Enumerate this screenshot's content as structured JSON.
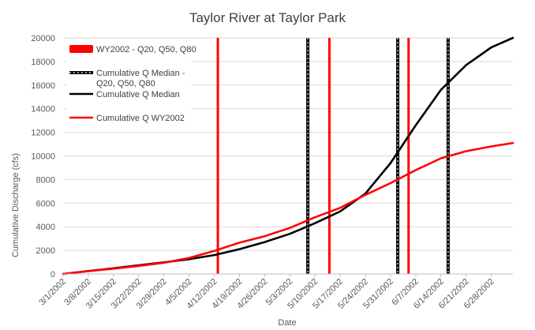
{
  "chart_data": {
    "type": "line",
    "title": "Taylor River at Taylor Park",
    "xlabel": "Date",
    "ylabel": "Cumulative Discharge (cfs)",
    "ylim": [
      0,
      20000
    ],
    "yticks": [
      0,
      2000,
      4000,
      6000,
      8000,
      10000,
      12000,
      14000,
      16000,
      18000,
      20000
    ],
    "xlim": [
      "2002-03-01",
      "2002-07-04"
    ],
    "xtick_labels": [
      "3/1/2002",
      "3/8/2002",
      "3/15/2002",
      "3/22/2002",
      "3/29/2002",
      "4/5/2002",
      "4/12/2002",
      "4/19/2002",
      "4/26/2002",
      "5/3/2002",
      "5/10/2002",
      "5/17/2002",
      "5/24/2002",
      "5/31/2002",
      "6/7/2002",
      "6/14/2002",
      "6/21/2002",
      "6/28/2002"
    ],
    "xtick_dates": [
      "2002-03-01",
      "2002-03-08",
      "2002-03-15",
      "2002-03-22",
      "2002-03-29",
      "2002-04-05",
      "2002-04-12",
      "2002-04-19",
      "2002-04-26",
      "2002-05-03",
      "2002-05-10",
      "2002-05-17",
      "2002-05-24",
      "2002-05-31",
      "2002-06-07",
      "2002-06-14",
      "2002-06-21",
      "2002-06-28"
    ],
    "grid": "horizontal",
    "legend_position": "top-left",
    "series": [
      {
        "name": "Cumulative Q Median",
        "color": "#000000",
        "x": [
          "2002-03-01",
          "2002-03-08",
          "2002-03-15",
          "2002-03-22",
          "2002-03-29",
          "2002-04-05",
          "2002-04-12",
          "2002-04-19",
          "2002-04-26",
          "2002-05-03",
          "2002-05-10",
          "2002-05-17",
          "2002-05-24",
          "2002-05-31",
          "2002-06-07",
          "2002-06-14",
          "2002-06-21",
          "2002-06-28",
          "2002-07-04"
        ],
        "y": [
          0,
          250,
          480,
          730,
          980,
          1250,
          1600,
          2100,
          2700,
          3400,
          4300,
          5300,
          6800,
          9400,
          12600,
          15600,
          17700,
          19200,
          20000
        ]
      },
      {
        "name": "Cumulative Q WY2002",
        "color": "#ff0000",
        "x": [
          "2002-03-01",
          "2002-03-08",
          "2002-03-15",
          "2002-03-22",
          "2002-03-29",
          "2002-04-05",
          "2002-04-12",
          "2002-04-19",
          "2002-04-26",
          "2002-05-03",
          "2002-05-10",
          "2002-05-17",
          "2002-05-24",
          "2002-05-31",
          "2002-06-07",
          "2002-06-14",
          "2002-06-21",
          "2002-06-28",
          "2002-07-04"
        ],
        "y": [
          0,
          240,
          450,
          680,
          950,
          1350,
          1950,
          2650,
          3200,
          3900,
          4800,
          5600,
          6700,
          7700,
          8800,
          9800,
          10400,
          10800,
          11100
        ]
      }
    ],
    "vertical_lines": [
      {
        "name": "WY2002 - Q20, Q50, Q80",
        "color": "#ff0000",
        "style": "red",
        "dates": [
          "2002-04-13",
          "2002-05-14",
          "2002-06-05"
        ]
      },
      {
        "name": "Cumulative Q Median - Q20, Q50, Q80",
        "color": "#000000",
        "style": "black-white-dashed",
        "dates": [
          "2002-05-08",
          "2002-06-02",
          "2002-06-16"
        ]
      }
    ],
    "legend": [
      {
        "label": "WY2002 - Q20, Q50, Q80",
        "kind": "red-bar"
      },
      {
        "label": "Cumulative Q Median -\nQ20, Q50, Q80",
        "kind": "dashed-black"
      },
      {
        "label": "Cumulative Q Median",
        "kind": "black-line"
      },
      {
        "label": "Cumulative Q WY2002",
        "kind": "red-line"
      }
    ]
  }
}
